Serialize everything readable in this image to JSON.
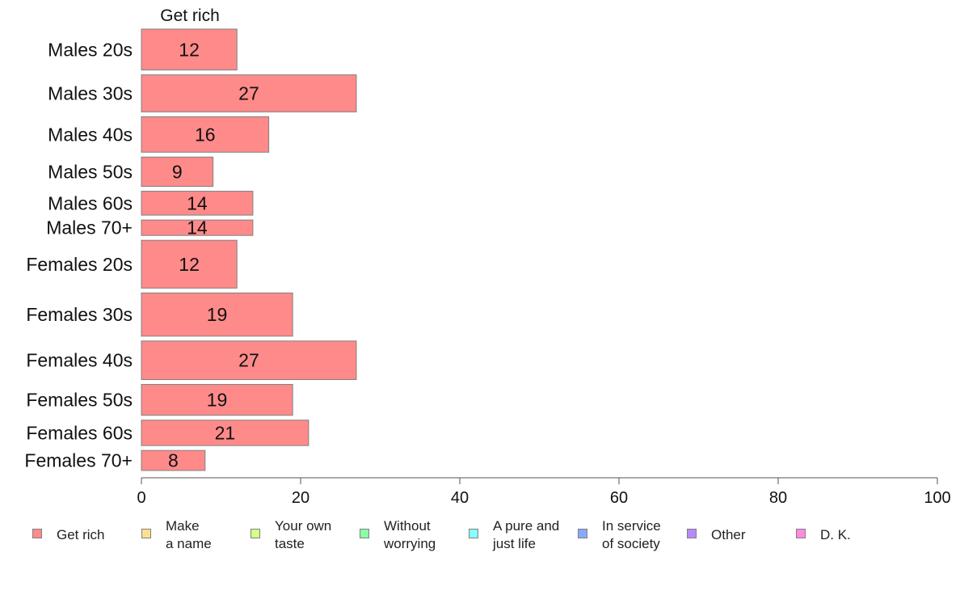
{
  "chart_data": {
    "type": "bar",
    "orientation": "horizontal",
    "column_title": "Get rich",
    "categories": [
      "Males 20s",
      "Males 30s",
      "Males 40s",
      "Males 50s",
      "Males 60s",
      "Males 70+",
      "Females 20s",
      "Females 30s",
      "Females 40s",
      "Females 50s",
      "Females 60s",
      "Females 70+"
    ],
    "category_weights": [
      1.06,
      0.96,
      0.92,
      0.76,
      0.62,
      0.4,
      1.24,
      1.12,
      1.0,
      0.8,
      0.66,
      0.52
    ],
    "series": [
      {
        "name": "Get rich",
        "values": [
          12,
          27,
          16,
          9,
          14,
          14,
          12,
          19,
          27,
          19,
          21,
          8
        ]
      }
    ],
    "xlim": [
      0,
      100
    ],
    "xticks": [
      0,
      20,
      40,
      60,
      80,
      100
    ],
    "legend": {
      "position": "bottom",
      "items": [
        {
          "label": "Get rich",
          "color": "#ff8a8a"
        },
        {
          "label": "Make\na name",
          "color": "#ffe08a"
        },
        {
          "label": "Your own\ntaste",
          "color": "#d4ff8a"
        },
        {
          "label": "Without\nworrying",
          "color": "#8affa8"
        },
        {
          "label": "A pure and\njust life",
          "color": "#8affff"
        },
        {
          "label": "In service\nof society",
          "color": "#8aa8ff"
        },
        {
          "label": "Other",
          "color": "#b88aff"
        },
        {
          "label": "D. K.",
          "color": "#ff8ae0"
        }
      ]
    },
    "grid": false
  }
}
